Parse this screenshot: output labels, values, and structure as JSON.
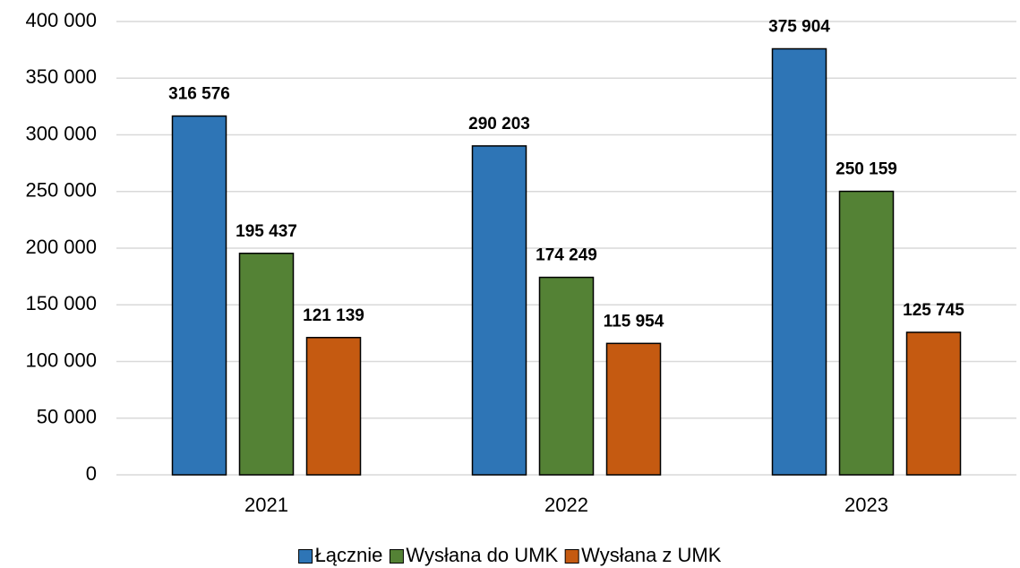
{
  "chart_data": {
    "type": "bar",
    "categories": [
      "2021",
      "2022",
      "2023"
    ],
    "series": [
      {
        "name": "Łącznie",
        "color": "#2e75b6",
        "values": [
          316576,
          290203,
          375904
        ],
        "value_labels": [
          "316 576",
          "290 203",
          "375 904"
        ]
      },
      {
        "name": "Wysłana do UMK",
        "color": "#548235",
        "values": [
          195437,
          174249,
          250159
        ],
        "value_labels": [
          "195 437",
          "174 249",
          "250 159"
        ]
      },
      {
        "name": "Wysłana z UMK",
        "color": "#c55a11",
        "values": [
          121139,
          115954,
          125745
        ],
        "value_labels": [
          "121 139",
          "115 954",
          "125 745"
        ]
      }
    ],
    "ylim": [
      0,
      400000
    ],
    "yticks": [
      0,
      {
        "value": 50000,
        "label": "50 000"
      },
      {
        "value": 100000,
        "label": "100 000"
      },
      {
        "value": 150000,
        "label": "150 000"
      },
      {
        "value": 200000,
        "label": "200 000"
      },
      {
        "value": 250000,
        "label": "250 000"
      },
      {
        "value": 300000,
        "label": "300 000"
      },
      {
        "value": 350000,
        "label": "350 000"
      },
      {
        "value": 400000,
        "label": "400 000"
      }
    ],
    "grid": true,
    "legend": "bottom"
  }
}
